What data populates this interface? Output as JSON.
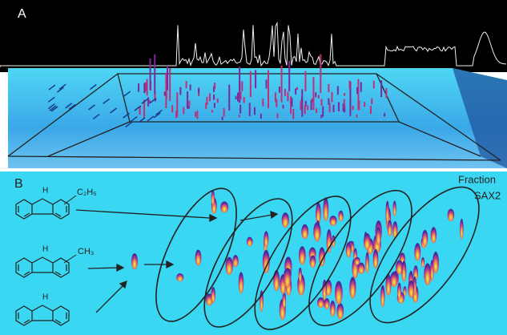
{
  "panels": [
    {
      "label": "A"
    },
    {
      "label": "B",
      "fraction_label": [
        "Fraction",
        "SAX2"
      ],
      "molecules": [
        {
          "nh": "H",
          "substituent": "C₂H₅"
        },
        {
          "nh": "H",
          "substituent": "CH₃"
        },
        {
          "nh": "H"
        }
      ]
    }
  ]
}
